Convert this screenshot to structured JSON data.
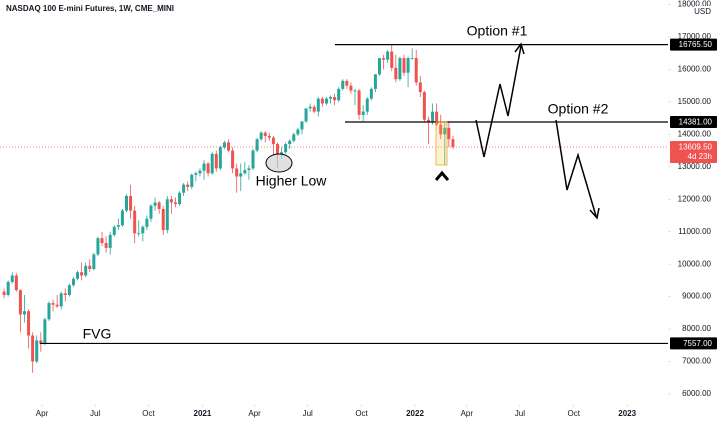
{
  "chart_data": {
    "type": "candlestick",
    "title": "NASDAQ 100 E-mini Futures, 1W, CME_MINI",
    "currency": "USD",
    "up_color": "#26a69a",
    "down_color": "#ef5350",
    "grid": false,
    "open": [
      9150,
      9050,
      9450,
      9650,
      9200,
      8450,
      8550,
      7800,
      7000,
      7650,
      7550,
      8300,
      8800,
      8750,
      8700,
      9100,
      9050,
      9350,
      9550,
      9750,
      9650,
      9950,
      9850,
      10300,
      10800,
      10650,
      10500,
      10900,
      11150,
      11200,
      11650,
      12100,
      11650,
      10950,
      10950,
      11150,
      11400,
      11800,
      11900,
      11700,
      11050,
      12000,
      11900,
      11850,
      12200,
      12450,
      12380,
      12750,
      12800,
      12880,
      13100,
      12800,
      13400,
      12950,
      13600,
      13750,
      13500,
      12950,
      12700,
      12800,
      12900,
      12950,
      13500,
      13850,
      14050,
      13950,
      13900,
      13700,
      13400,
      13450,
      13700,
      13800,
      14000,
      14150,
      14400,
      14800,
      14850,
      14700,
      15100,
      14950,
      15100,
      15150,
      15050,
      15400,
      15650,
      15500,
      15350,
      15350,
      14600,
      14700,
      15100,
      15400,
      15850,
      16350,
      16300,
      16550,
      16050,
      15700,
      16350,
      15900,
      16350,
      16350,
      15600,
      15300,
      14450,
      14400,
      14700,
      14300,
      14000,
      14200,
      13850
    ],
    "high": [
      9250,
      9500,
      9750,
      9720,
      9220,
      9050,
      8600,
      7900,
      7800,
      7900,
      8350,
      8850,
      8900,
      9050,
      9150,
      9250,
      9400,
      9600,
      9800,
      10050,
      10050,
      10150,
      10350,
      10850,
      11000,
      10850,
      11000,
      11200,
      11400,
      11700,
      12150,
      12450,
      11800,
      11350,
      11200,
      11500,
      11850,
      12050,
      11950,
      11800,
      12100,
      12100,
      12050,
      12250,
      12500,
      12550,
      12800,
      12850,
      12950,
      13200,
      13150,
      13450,
      13500,
      13650,
      13800,
      13850,
      13600,
      13100,
      13100,
      13150,
      13050,
      13550,
      13900,
      14100,
      14100,
      14050,
      13950,
      13750,
      13600,
      13750,
      13850,
      14050,
      14200,
      14400,
      14800,
      14950,
      14900,
      15150,
      15150,
      15150,
      15200,
      15250,
      15450,
      15700,
      15700,
      15600,
      15400,
      15400,
      14900,
      15150,
      15450,
      15850,
      16350,
      16450,
      16600,
      16770,
      16450,
      16400,
      16450,
      16400,
      16650,
      16600,
      15800,
      15350,
      14550,
      14950,
      14950,
      14600,
      14350,
      14400,
      13950
    ],
    "low": [
      8950,
      9000,
      9400,
      9150,
      7900,
      8200,
      7400,
      6650,
      6950,
      7300,
      7500,
      8250,
      8550,
      8650,
      8600,
      8850,
      9000,
      9300,
      9500,
      9500,
      9600,
      9750,
      9800,
      10250,
      10550,
      10350,
      10300,
      10850,
      11050,
      11150,
      11600,
      11400,
      10650,
      10850,
      10700,
      11050,
      11300,
      11650,
      11550,
      10900,
      10950,
      11550,
      11750,
      11800,
      12100,
      12250,
      12300,
      12550,
      12700,
      12600,
      12700,
      12750,
      12850,
      12900,
      13550,
      13450,
      12800,
      12200,
      12250,
      12750,
      12600,
      12900,
      13450,
      13800,
      13750,
      13800,
      13350,
      12950,
      13250,
      13400,
      13550,
      13750,
      13950,
      14000,
      14350,
      14700,
      14650,
      14550,
      14850,
      14900,
      14950,
      14900,
      15000,
      15350,
      15400,
      15250,
      14900,
      14450,
      14400,
      14600,
      15050,
      15300,
      15800,
      16000,
      16200,
      15950,
      15600,
      15650,
      15800,
      15450,
      16300,
      15500,
      15150,
      14400,
      13700,
      14300,
      14250,
      13850,
      13050,
      13600,
      13550
    ],
    "close": [
      9050,
      9450,
      9650,
      9200,
      8450,
      8550,
      7800,
      7000,
      7650,
      7550,
      8300,
      8800,
      8750,
      8700,
      9100,
      9050,
      9350,
      9550,
      9750,
      9650,
      9950,
      9850,
      10300,
      10800,
      10650,
      10500,
      10900,
      11150,
      11200,
      11650,
      12100,
      11650,
      10950,
      10950,
      11150,
      11400,
      11800,
      11900,
      11700,
      11050,
      12000,
      11900,
      11850,
      12200,
      12450,
      12380,
      12750,
      12800,
      12880,
      13100,
      12800,
      13400,
      12950,
      13600,
      13750,
      13500,
      12950,
      12700,
      12800,
      12900,
      12950,
      13500,
      13850,
      14050,
      13950,
      13900,
      13700,
      13400,
      13450,
      13700,
      13800,
      14000,
      14150,
      14400,
      14800,
      14850,
      14700,
      15100,
      14950,
      15100,
      15150,
      15050,
      15400,
      15650,
      15500,
      15350,
      15350,
      14600,
      14700,
      15100,
      15400,
      15850,
      16350,
      16300,
      16550,
      16050,
      15700,
      16350,
      15900,
      16350,
      16350,
      15600,
      15300,
      14450,
      14400,
      14700,
      14300,
      14000,
      14200,
      13850,
      13610
    ],
    "xlim": [
      -1,
      162.7
    ],
    "xticks": [
      {
        "value": 9.3,
        "label": "Apr"
      },
      {
        "value": 22.3,
        "label": "Jul"
      },
      {
        "value": 35.4,
        "label": "Oct"
      },
      {
        "value": 48.6,
        "label": "2021"
      },
      {
        "value": 61.4,
        "label": "Apr"
      },
      {
        "value": 74.4,
        "label": "Jul"
      },
      {
        "value": 87.6,
        "label": "Oct"
      },
      {
        "value": 100.7,
        "label": "2022"
      },
      {
        "value": 113.4,
        "label": "Apr"
      },
      {
        "value": 126.4,
        "label": "Jul"
      },
      {
        "value": 139.6,
        "label": "Oct"
      },
      {
        "value": 152.7,
        "label": "2023"
      }
    ],
    "ylim": [
      5690,
      18140
    ],
    "yticks": [
      {
        "value": 6000,
        "label": "6000.00"
      },
      {
        "value": 7000,
        "label": "7000.00"
      },
      {
        "value": 8000,
        "label": "8000.00"
      },
      {
        "value": 9000,
        "label": "9000.00"
      },
      {
        "value": 10000,
        "label": "10000.00"
      },
      {
        "value": 11000,
        "label": "11000.00"
      },
      {
        "value": 12000,
        "label": "12000.00"
      },
      {
        "value": 13000,
        "label": "13000.00"
      },
      {
        "value": 14000,
        "label": "14000.00"
      },
      {
        "value": 15000,
        "label": "15000.00"
      },
      {
        "value": 16000,
        "label": "16000.00"
      },
      {
        "value": 17000,
        "label": "17000.00"
      },
      {
        "value": 18000,
        "label": "18000.00"
      }
    ],
    "levels": [
      {
        "value": 16765.5,
        "label": "16765.50"
      },
      {
        "value": 14381,
        "label": "14381.00"
      },
      {
        "value": 7557,
        "label": "7557.00"
      }
    ],
    "price_line": {
      "value": 13609.5,
      "label": "13609.50",
      "countdown": "4d 23h",
      "color": "#ef5350"
    },
    "annotations": {
      "option1": "Option #1",
      "option2": "Option #2",
      "fvg": "FVG",
      "higher_low": "Higher Low"
    }
  }
}
